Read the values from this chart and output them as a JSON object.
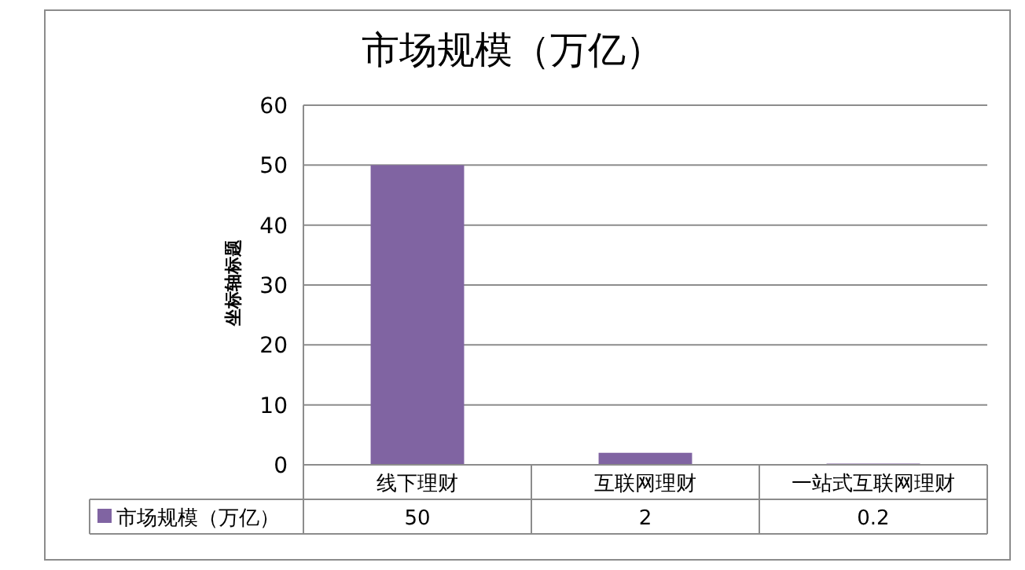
{
  "chart_data": {
    "type": "bar",
    "title": "市场规模（万亿）",
    "ylabel": "坐标轴标题",
    "categories": [
      "线下理财",
      "互联网理财",
      "一站式互联网理财"
    ],
    "series": [
      {
        "name": "市场规模（万亿）",
        "color": "#8064a2",
        "values": [
          50,
          2,
          0.2
        ]
      }
    ],
    "ylim": [
      0,
      60
    ],
    "yticks": [
      0,
      10,
      20,
      30,
      40,
      50,
      60
    ],
    "grid": "y",
    "data_labels": true,
    "legend": "bottom"
  }
}
